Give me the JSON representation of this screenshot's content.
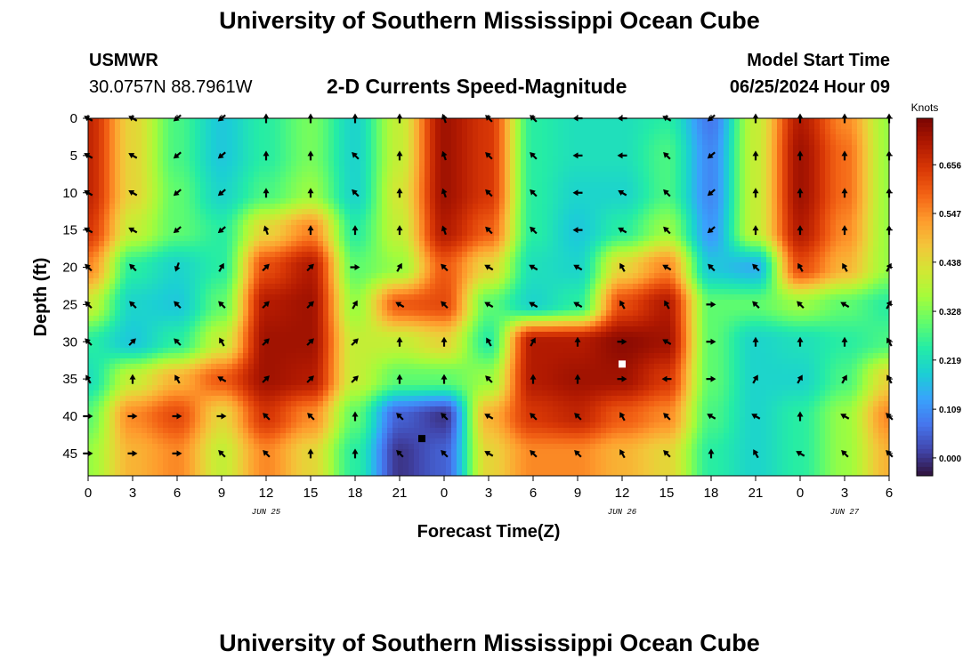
{
  "header": {
    "title": "University of Southern Mississippi Ocean Cube",
    "station": "USMWR",
    "coordinates": "30.0757N  88.7961W",
    "subtitle": "2-D Currents Speed-Magnitude",
    "model_label": "Model Start Time",
    "model_time": "06/25/2024 Hour 09"
  },
  "footer": {
    "title": "University of Southern Mississippi Ocean Cube"
  },
  "chart_data": {
    "type": "heatmap",
    "title": "2-D Currents Speed-Magnitude",
    "xlabel": "Forecast Time(Z)",
    "ylabel": "Depth (ft)",
    "x_tick_labels": [
      "0",
      "3",
      "6",
      "9",
      "12",
      "15",
      "18",
      "21",
      "0",
      "3",
      "6",
      "9",
      "12",
      "15",
      "18",
      "21",
      "0",
      "3",
      "6"
    ],
    "x_hours": [
      0,
      3,
      6,
      9,
      12,
      15,
      18,
      21,
      24,
      27,
      30,
      33,
      36,
      39,
      42,
      45,
      48,
      51,
      54
    ],
    "xlim": [
      0,
      54
    ],
    "y_ticks": [
      0,
      5,
      10,
      15,
      20,
      25,
      30,
      35,
      40,
      45
    ],
    "ylim": [
      0,
      48
    ],
    "date_labels": [
      {
        "text": "JUN 25",
        "hour": 12
      },
      {
        "text": "JUN 26",
        "hour": 36
      },
      {
        "text": "JUN 27",
        "hour": 51
      }
    ],
    "colorbar": {
      "title": "Knots",
      "ticks": [
        "0.656",
        "0.547",
        "0.438",
        "0.328",
        "0.219",
        "0.109",
        "0.000"
      ],
      "range": [
        -0.04,
        0.76
      ],
      "colors": [
        "#30123b",
        "#4145ab",
        "#4675ed",
        "#39a2fc",
        "#1bcfd4",
        "#24eca6",
        "#61fc6c",
        "#a4fc3b",
        "#d1e834",
        "#f3c63a",
        "#fe9b2d",
        "#f36315",
        "#d93806",
        "#b11901",
        "#7a0402"
      ]
    },
    "speed_field_knots": {
      "depths_ft": [
        0,
        5,
        10,
        15,
        20,
        25,
        30,
        35,
        40,
        45
      ],
      "values": [
        [
          0.68,
          0.45,
          0.28,
          0.18,
          0.25,
          0.32,
          0.2,
          0.4,
          0.72,
          0.65,
          0.25,
          0.22,
          0.22,
          0.25,
          0.08,
          0.4,
          0.7,
          0.55,
          0.35
        ],
        [
          0.68,
          0.45,
          0.28,
          0.18,
          0.25,
          0.32,
          0.2,
          0.4,
          0.72,
          0.65,
          0.25,
          0.22,
          0.22,
          0.28,
          0.1,
          0.4,
          0.72,
          0.58,
          0.35
        ],
        [
          0.68,
          0.45,
          0.3,
          0.2,
          0.28,
          0.35,
          0.2,
          0.42,
          0.72,
          0.65,
          0.25,
          0.2,
          0.2,
          0.28,
          0.1,
          0.4,
          0.72,
          0.58,
          0.35
        ],
        [
          0.65,
          0.4,
          0.3,
          0.25,
          0.45,
          0.55,
          0.25,
          0.4,
          0.7,
          0.6,
          0.25,
          0.18,
          0.25,
          0.35,
          0.12,
          0.4,
          0.7,
          0.55,
          0.35
        ],
        [
          0.55,
          0.25,
          0.2,
          0.25,
          0.62,
          0.7,
          0.3,
          0.35,
          0.6,
          0.45,
          0.22,
          0.2,
          0.45,
          0.55,
          0.18,
          0.15,
          0.62,
          0.5,
          0.35
        ],
        [
          0.4,
          0.2,
          0.18,
          0.3,
          0.7,
          0.72,
          0.35,
          0.6,
          0.62,
          0.3,
          0.2,
          0.25,
          0.62,
          0.7,
          0.3,
          0.3,
          0.35,
          0.3,
          0.25
        ],
        [
          0.25,
          0.18,
          0.25,
          0.4,
          0.72,
          0.72,
          0.4,
          0.4,
          0.45,
          0.25,
          0.7,
          0.7,
          0.74,
          0.72,
          0.3,
          0.2,
          0.22,
          0.25,
          0.28
        ],
        [
          0.22,
          0.4,
          0.5,
          0.6,
          0.72,
          0.7,
          0.4,
          0.3,
          0.3,
          0.35,
          0.7,
          0.72,
          0.72,
          0.65,
          0.3,
          0.2,
          0.2,
          0.28,
          0.45
        ],
        [
          0.3,
          0.55,
          0.62,
          0.45,
          0.65,
          0.55,
          0.3,
          0.05,
          0.0,
          0.5,
          0.65,
          0.68,
          0.6,
          0.55,
          0.28,
          0.2,
          0.25,
          0.35,
          0.55
        ],
        [
          0.35,
          0.5,
          0.55,
          0.4,
          0.55,
          0.45,
          0.25,
          0.0,
          0.05,
          0.45,
          0.55,
          0.55,
          0.5,
          0.45,
          0.25,
          0.2,
          0.25,
          0.35,
          0.5
        ]
      ]
    },
    "vector_angles_deg": [
      [
        300,
        300,
        230,
        230,
        0,
        0,
        0,
        0,
        340,
        315,
        315,
        270,
        270,
        300,
        230,
        0,
        0,
        0,
        0
      ],
      [
        300,
        300,
        230,
        230,
        0,
        0,
        315,
        0,
        340,
        315,
        315,
        270,
        270,
        315,
        230,
        0,
        0,
        0,
        0
      ],
      [
        300,
        300,
        230,
        230,
        0,
        0,
        315,
        0,
        340,
        315,
        315,
        270,
        300,
        315,
        230,
        0,
        0,
        0,
        0
      ],
      [
        300,
        300,
        230,
        230,
        340,
        0,
        0,
        0,
        340,
        315,
        315,
        270,
        300,
        315,
        230,
        0,
        0,
        0,
        0
      ],
      [
        315,
        315,
        200,
        30,
        45,
        45,
        90,
        30,
        315,
        300,
        300,
        300,
        330,
        300,
        315,
        315,
        330,
        330,
        30
      ],
      [
        315,
        315,
        315,
        315,
        45,
        45,
        30,
        300,
        315,
        300,
        300,
        300,
        330,
        330,
        90,
        315,
        315,
        300,
        30
      ],
      [
        315,
        45,
        315,
        330,
        45,
        45,
        45,
        0,
        0,
        330,
        30,
        0,
        90,
        300,
        90,
        0,
        0,
        0,
        330
      ],
      [
        330,
        0,
        330,
        300,
        45,
        45,
        45,
        0,
        0,
        315,
        0,
        0,
        90,
        270,
        90,
        30,
        30,
        30,
        330
      ],
      [
        90,
        90,
        90,
        90,
        315,
        315,
        0,
        315,
        315,
        300,
        315,
        315,
        330,
        315,
        300,
        300,
        0,
        300,
        315
      ],
      [
        90,
        90,
        90,
        315,
        315,
        0,
        0,
        315,
        315,
        300,
        315,
        315,
        330,
        315,
        0,
        330,
        300,
        315,
        315
      ]
    ],
    "markers": [
      {
        "hour": 36,
        "depth_ft": 33,
        "color": "#ffffff"
      },
      {
        "hour": 22.5,
        "depth_ft": 43,
        "color": "#000000"
      }
    ]
  }
}
